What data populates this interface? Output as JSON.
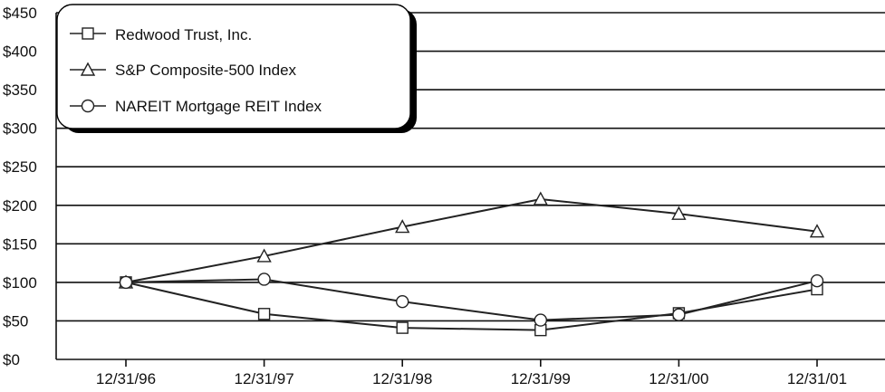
{
  "chart_data": {
    "type": "line",
    "categories": [
      "12/31/96",
      "12/31/97",
      "12/31/98",
      "12/31/99",
      "12/31/00",
      "12/31/01"
    ],
    "y_tick_labels": [
      "$0",
      "$50",
      "$100",
      "$150",
      "$200",
      "$250",
      "$300",
      "$350",
      "$400",
      "$450"
    ],
    "ylim": [
      0,
      450
    ],
    "y_tick_values": [
      0,
      50,
      100,
      150,
      200,
      250,
      300,
      350,
      400,
      450
    ],
    "grid": true,
    "legend_position": "top-left",
    "series": [
      {
        "name": "Redwood Trust, Inc.",
        "marker": "square",
        "values": [
          100,
          59,
          41,
          38,
          60,
          91
        ]
      },
      {
        "name": "S&P Composite-500 Index",
        "marker": "triangle",
        "values": [
          100,
          134,
          172,
          208,
          189,
          166
        ]
      },
      {
        "name": "NAREIT Mortgage REIT Index",
        "marker": "circle",
        "values": [
          100,
          104,
          75,
          51,
          58,
          102
        ]
      }
    ]
  }
}
